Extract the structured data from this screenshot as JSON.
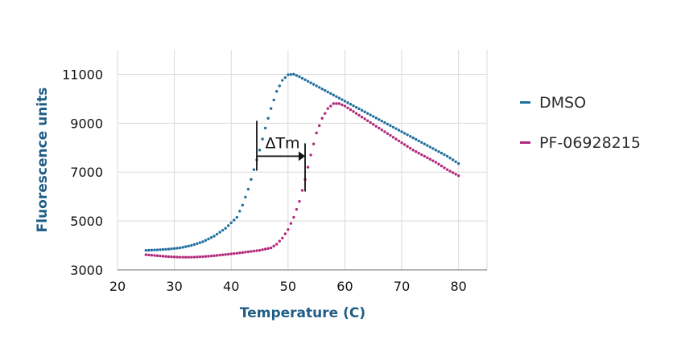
{
  "chart_data": {
    "type": "scatter",
    "title": "",
    "xlabel": "Temperature (C)",
    "ylabel": "Fluorescence units",
    "xlim": [
      20,
      85
    ],
    "ylim": [
      3000,
      12000
    ],
    "x_ticks": [
      "20",
      "30",
      "40",
      "50",
      "60",
      "70",
      "80"
    ],
    "y_ticks": [
      "3000",
      "5000",
      "7000",
      "9000",
      "11000"
    ],
    "grid": true,
    "legend_position": "right",
    "series": [
      {
        "name": "DMSO",
        "color": "#1f6f9f",
        "x": [
          25,
          27,
          29,
          31,
          33,
          35,
          37,
          39,
          41,
          42,
          43,
          44,
          45,
          46,
          47,
          48,
          49,
          50,
          51,
          52,
          54,
          56,
          58,
          60,
          62,
          64,
          66,
          68,
          70,
          72,
          74,
          76,
          78,
          80
        ],
        "y": [
          3800,
          3820,
          3850,
          3900,
          4000,
          4150,
          4380,
          4700,
          5150,
          5650,
          6300,
          7100,
          7900,
          8800,
          9600,
          10300,
          10750,
          10980,
          11000,
          10900,
          10650,
          10400,
          10150,
          9900,
          9650,
          9400,
          9150,
          8900,
          8650,
          8400,
          8150,
          7900,
          7650,
          7350
        ]
      },
      {
        "name": "PF-06928215",
        "color": "#b2287b",
        "x": [
          25,
          27,
          29,
          31,
          33,
          35,
          37,
          39,
          41,
          43,
          45,
          47,
          48,
          49,
          50,
          51,
          52,
          53,
          54,
          55,
          56,
          57,
          58,
          59,
          60,
          62,
          64,
          66,
          68,
          70,
          72,
          74,
          76,
          78,
          80
        ],
        "y": [
          3620,
          3580,
          3540,
          3520,
          3520,
          3540,
          3580,
          3630,
          3680,
          3740,
          3800,
          3900,
          4050,
          4300,
          4650,
          5150,
          5800,
          6700,
          7700,
          8600,
          9200,
          9600,
          9800,
          9800,
          9700,
          9400,
          9100,
          8800,
          8500,
          8200,
          7900,
          7650,
          7400,
          7100,
          6850
        ]
      }
    ],
    "annotations": [
      {
        "text": "ΔTm",
        "x_start": 44.5,
        "x_end": 53,
        "y": 7650
      }
    ]
  }
}
